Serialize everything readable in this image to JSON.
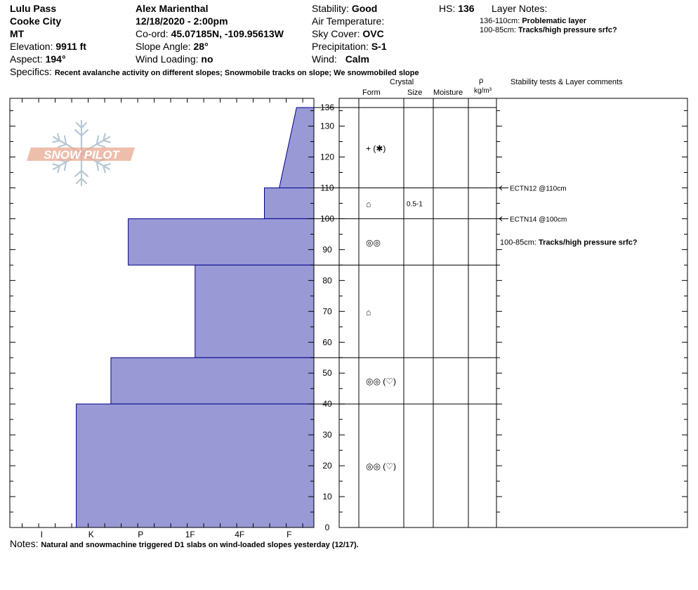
{
  "header": {
    "location": "Lulu Pass",
    "area": "Cooke City",
    "state": "MT",
    "elevation_label": "Elevation:",
    "elevation": "9911 ft",
    "aspect_label": "Aspect:",
    "aspect": "194°",
    "observer": "Alex Marienthal",
    "datetime": "12/18/2020 - 2:00pm",
    "coord_label": "Co-ord:",
    "coord": "45.07185N, -109.95613W",
    "slope_label": "Slope Angle:",
    "slope": "28°",
    "windload_label": "Wind Loading:",
    "windload": "no",
    "stability_label": "Stability:",
    "stability": "Good",
    "airtemp_label": "Air Temperature:",
    "airtemp": "",
    "sky_label": "Sky Cover:",
    "sky": "OVC",
    "precip_label": "Precipitation:",
    "precip": "S-1",
    "wind_label": "Wind:",
    "wind": "Calm",
    "hs_label": "HS:",
    "hs": "136",
    "layer_notes_label": "Layer Notes:",
    "layer_notes": [
      {
        "range": "136-110cm:",
        "text": "Problematic layer"
      },
      {
        "range": "100-85cm:",
        "text": "Tracks/high pressure srfc?"
      }
    ],
    "specifics_label": "Specifics:",
    "specifics": "Recent avalanche activity on different slopes; Snowmobile tracks on slope; We snowmobiled slope"
  },
  "columns": {
    "crystal": "Crystal",
    "form": "Form",
    "size": "Size",
    "moisture": "Moisture",
    "rho": "ρ",
    "density_unit": "kg/m³",
    "stability": "Stability tests & Layer comments"
  },
  "logo_text": "SNOW PILOT",
  "notes_label": "Notes:",
  "notes": "Natural and snowmachine triggered D1 slabs on wind-loaded slopes yesterday (12/17).",
  "colors": {
    "hardness_fill": "#9999d6",
    "hardness_stroke": "#00008b",
    "logo": "#e8a890",
    "snowflake": "#b8c8d4"
  },
  "chart_data": {
    "type": "bar",
    "orientation": "horizontal-step",
    "ylabel": "",
    "ylim": [
      0,
      136
    ],
    "y_ticks": [
      0,
      10,
      20,
      30,
      40,
      50,
      60,
      70,
      80,
      90,
      100,
      110,
      120,
      130,
      136
    ],
    "hardness_scale": [
      "I",
      "K",
      "P",
      "1F",
      "4F",
      "F"
    ],
    "hardness_values": {
      "F": 0.5,
      "4F": 1.5,
      "1F": 2.5,
      "P": 3.5,
      "K": 4.5,
      "I": 5.5
    },
    "layers": [
      {
        "top": 136,
        "bottom": 110,
        "hardness_top": 0.35,
        "hardness_bottom": 0.7,
        "form": "+ (✱)",
        "size": "",
        "moisture": ""
      },
      {
        "top": 110,
        "bottom": 100,
        "hardness": 1.0,
        "form": "⌂",
        "size": "0.5-1",
        "moisture": ""
      },
      {
        "top": 100,
        "bottom": 85,
        "hardness": 3.75,
        "form": "◎◎",
        "size": "",
        "moisture": ""
      },
      {
        "top": 85,
        "bottom": 55,
        "hardness": 2.4,
        "form": "⌂",
        "size": "",
        "moisture": ""
      },
      {
        "top": 55,
        "bottom": 40,
        "hardness": 4.1,
        "form": "◎◎ (♡)",
        "size": "",
        "moisture": ""
      },
      {
        "top": 40,
        "bottom": 0,
        "hardness": 4.8,
        "form": "◎◎ (♡)",
        "size": "",
        "moisture": ""
      }
    ],
    "tests": [
      {
        "depth": 110,
        "label": "ECTN12 @110cm"
      },
      {
        "depth": 100,
        "label": "ECTN14 @100cm"
      }
    ],
    "layer_comments": [
      {
        "depth": 92.5,
        "range": "100-85cm:",
        "text": "Tracks/high pressure srfc?"
      }
    ]
  }
}
